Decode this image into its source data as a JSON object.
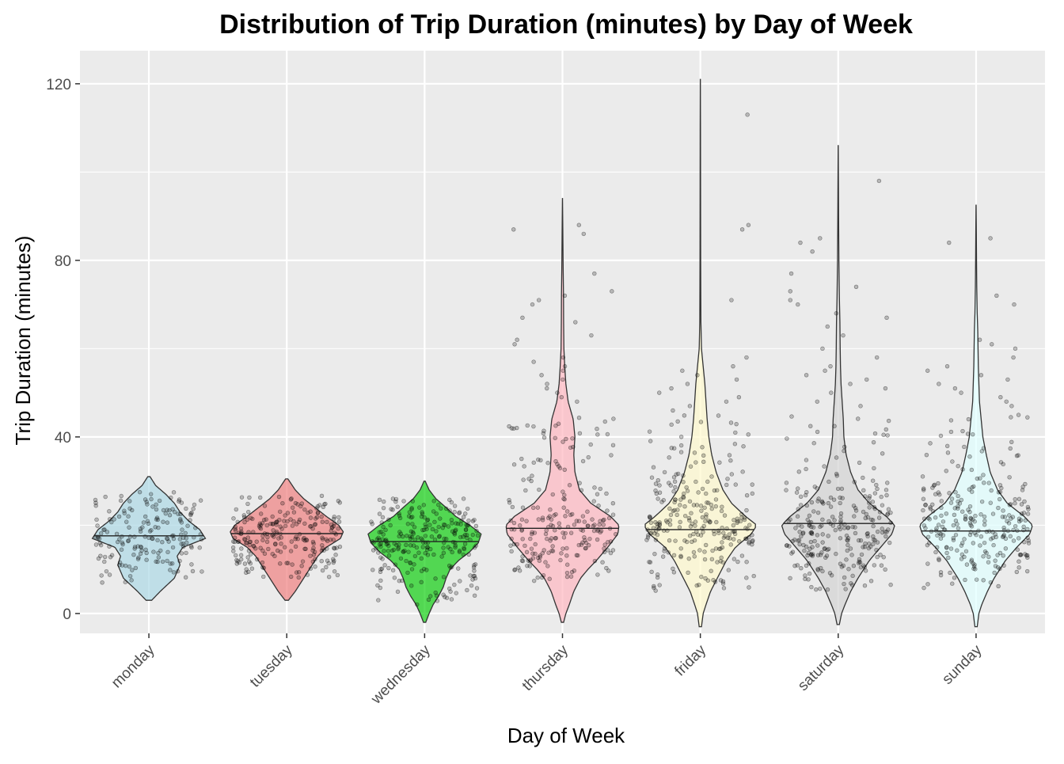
{
  "chart_data": {
    "type": "violin",
    "title": "Distribution of Trip Duration (minutes) by Day of Week",
    "xlabel": "Day of Week",
    "ylabel": "Trip Duration (minutes)",
    "ylim": [
      -4.5,
      127.5
    ],
    "yticks": [
      0,
      40,
      80,
      120
    ],
    "grid": true,
    "legend": "none",
    "panel_background": "#EBEBEB",
    "grid_color": "#FFFFFF",
    "series": [
      {
        "category": "monday",
        "color": "#ADD8E6",
        "fill_opacity": 0.7,
        "min": 3,
        "max": 31,
        "median": 17.6,
        "density": [
          [
            3,
            0.05
          ],
          [
            5,
            0.2
          ],
          [
            8,
            0.45
          ],
          [
            11,
            0.55
          ],
          [
            13,
            0.5
          ],
          [
            15,
            0.6
          ],
          [
            17,
            1.0
          ],
          [
            19,
            0.9
          ],
          [
            21,
            0.7
          ],
          [
            23,
            0.55
          ],
          [
            25,
            0.45
          ],
          [
            27,
            0.3
          ],
          [
            29,
            0.12
          ],
          [
            31,
            0.02
          ]
        ],
        "points_n": 180,
        "points_range": [
          7,
          28
        ],
        "outliers": []
      },
      {
        "category": "tuesday",
        "color": "#F08080",
        "fill_opacity": 0.7,
        "min": 3,
        "max": 30.5,
        "median": 18.1,
        "density": [
          [
            3,
            0.03
          ],
          [
            5,
            0.15
          ],
          [
            7,
            0.25
          ],
          [
            9,
            0.35
          ],
          [
            11,
            0.45
          ],
          [
            13,
            0.55
          ],
          [
            15,
            0.7
          ],
          [
            17,
            0.95
          ],
          [
            18.5,
            1.0
          ],
          [
            20,
            0.92
          ],
          [
            22,
            0.7
          ],
          [
            24,
            0.5
          ],
          [
            26,
            0.3
          ],
          [
            28,
            0.15
          ],
          [
            30.5,
            0.02
          ]
        ],
        "points_n": 240,
        "points_range": [
          8,
          27
        ],
        "outliers": []
      },
      {
        "category": "wednesday",
        "color": "#00CC00",
        "fill_opacity": 0.65,
        "min": -2,
        "max": 30,
        "median": 16.3,
        "density": [
          [
            -2,
            0.02
          ],
          [
            0,
            0.08
          ],
          [
            2,
            0.15
          ],
          [
            4,
            0.25
          ],
          [
            6,
            0.33
          ],
          [
            8,
            0.38
          ],
          [
            10,
            0.45
          ],
          [
            12,
            0.6
          ],
          [
            14,
            0.8
          ],
          [
            16,
            0.95
          ],
          [
            18,
            1.0
          ],
          [
            20,
            0.8
          ],
          [
            22,
            0.55
          ],
          [
            24,
            0.38
          ],
          [
            26,
            0.2
          ],
          [
            28,
            0.08
          ],
          [
            30,
            0.01
          ]
        ],
        "points_n": 260,
        "points_range": [
          2,
          26
        ],
        "outliers": []
      },
      {
        "category": "thursday",
        "color": "#FFB6C1",
        "fill_opacity": 0.7,
        "min": -2,
        "max": 94,
        "median": 19.3,
        "density": [
          [
            -2,
            0.02
          ],
          [
            0,
            0.06
          ],
          [
            2,
            0.12
          ],
          [
            5,
            0.2
          ],
          [
            8,
            0.32
          ],
          [
            10,
            0.45
          ],
          [
            12,
            0.6
          ],
          [
            15,
            0.8
          ],
          [
            18,
            0.98
          ],
          [
            20,
            1.0
          ],
          [
            22,
            0.85
          ],
          [
            25,
            0.5
          ],
          [
            28,
            0.3
          ],
          [
            32,
            0.22
          ],
          [
            36,
            0.2
          ],
          [
            40,
            0.22
          ],
          [
            44,
            0.19
          ],
          [
            48,
            0.1
          ],
          [
            52,
            0.06
          ],
          [
            56,
            0.04
          ],
          [
            60,
            0.025
          ],
          [
            66,
            0.02
          ],
          [
            72,
            0.018
          ],
          [
            78,
            0.012
          ],
          [
            84,
            0.008
          ],
          [
            90,
            0.004
          ],
          [
            94,
            0.001
          ]
        ],
        "points_n": 220,
        "points_range": [
          7,
          45
        ],
        "outliers": [
          88,
          87,
          86,
          77,
          73,
          72,
          71,
          70,
          67,
          66,
          63,
          62,
          61,
          58,
          57,
          56,
          55,
          54,
          53,
          52,
          51,
          50,
          49,
          48
        ]
      },
      {
        "category": "friday",
        "color": "#FFFACD",
        "fill_opacity": 0.7,
        "min": -3,
        "max": 121,
        "median": 19.0,
        "density": [
          [
            -3,
            0.02
          ],
          [
            0,
            0.05
          ],
          [
            2,
            0.1
          ],
          [
            5,
            0.18
          ],
          [
            8,
            0.3
          ],
          [
            10,
            0.38
          ],
          [
            12,
            0.46
          ],
          [
            15,
            0.62
          ],
          [
            18,
            0.9
          ],
          [
            20,
            1.0
          ],
          [
            22,
            0.8
          ],
          [
            25,
            0.55
          ],
          [
            28,
            0.4
          ],
          [
            32,
            0.28
          ],
          [
            36,
            0.2
          ],
          [
            40,
            0.15
          ],
          [
            44,
            0.12
          ],
          [
            48,
            0.1
          ],
          [
            52,
            0.08
          ],
          [
            56,
            0.05
          ],
          [
            60,
            0.02
          ],
          [
            66,
            0.01
          ],
          [
            72,
            0.008
          ],
          [
            80,
            0.006
          ],
          [
            90,
            0.005
          ],
          [
            100,
            0.004
          ],
          [
            110,
            0.003
          ],
          [
            121,
            0.001
          ]
        ],
        "points_n": 260,
        "points_range": [
          5,
          45
        ],
        "outliers": [
          113,
          88,
          87,
          71,
          58,
          56,
          55,
          54,
          53,
          52,
          51,
          50,
          49,
          48,
          47,
          46
        ]
      },
      {
        "category": "saturday",
        "color": "#D3D3D3",
        "fill_opacity": 0.7,
        "min": -2.5,
        "max": 106,
        "median": 20.4,
        "density": [
          [
            -2.5,
            0.02
          ],
          [
            0,
            0.06
          ],
          [
            2,
            0.12
          ],
          [
            5,
            0.22
          ],
          [
            8,
            0.35
          ],
          [
            10,
            0.45
          ],
          [
            12,
            0.55
          ],
          [
            15,
            0.75
          ],
          [
            18,
            0.95
          ],
          [
            20,
            1.0
          ],
          [
            22,
            0.85
          ],
          [
            25,
            0.55
          ],
          [
            28,
            0.35
          ],
          [
            32,
            0.22
          ],
          [
            36,
            0.14
          ],
          [
            40,
            0.1
          ],
          [
            44,
            0.09
          ],
          [
            48,
            0.07
          ],
          [
            52,
            0.05
          ],
          [
            56,
            0.04
          ],
          [
            60,
            0.035
          ],
          [
            66,
            0.03
          ],
          [
            72,
            0.02
          ],
          [
            80,
            0.012
          ],
          [
            88,
            0.008
          ],
          [
            96,
            0.005
          ],
          [
            106,
            0.001
          ]
        ],
        "points_n": 260,
        "points_range": [
          5,
          45
        ],
        "outliers": [
          98,
          85,
          84,
          82,
          77,
          74,
          73,
          71,
          70,
          68,
          67,
          65,
          63,
          60,
          58,
          56,
          55,
          54,
          53,
          52,
          51,
          50,
          48,
          47
        ]
      },
      {
        "category": "sunday",
        "color": "#E0FFFF",
        "fill_opacity": 0.7,
        "min": -3,
        "max": 92.5,
        "median": 18.7,
        "density": [
          [
            -3,
            0.02
          ],
          [
            0,
            0.05
          ],
          [
            2,
            0.1
          ],
          [
            5,
            0.2
          ],
          [
            8,
            0.32
          ],
          [
            10,
            0.42
          ],
          [
            12,
            0.52
          ],
          [
            15,
            0.72
          ],
          [
            18,
            0.95
          ],
          [
            20,
            1.0
          ],
          [
            22,
            0.85
          ],
          [
            25,
            0.55
          ],
          [
            28,
            0.38
          ],
          [
            32,
            0.25
          ],
          [
            36,
            0.18
          ],
          [
            40,
            0.12
          ],
          [
            44,
            0.09
          ],
          [
            48,
            0.06
          ],
          [
            52,
            0.05
          ],
          [
            56,
            0.04
          ],
          [
            60,
            0.035
          ],
          [
            64,
            0.03
          ],
          [
            68,
            0.02
          ],
          [
            74,
            0.012
          ],
          [
            80,
            0.008
          ],
          [
            86,
            0.005
          ],
          [
            92.5,
            0.001
          ]
        ],
        "points_n": 260,
        "points_range": [
          5,
          45
        ],
        "outliers": [
          85,
          84,
          72,
          70,
          62,
          61,
          60,
          58,
          56,
          55,
          54,
          53,
          52,
          51,
          50,
          49,
          48,
          47
        ]
      }
    ]
  }
}
